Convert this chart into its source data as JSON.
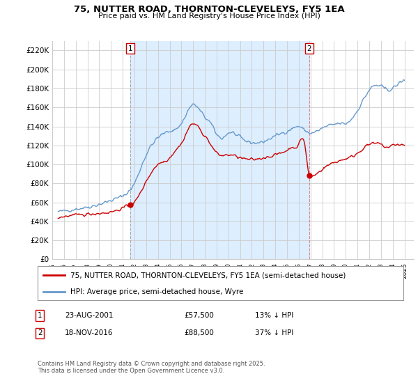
{
  "title": "75, NUTTER ROAD, THORNTON-CLEVELEYS, FY5 1EA",
  "subtitle": "Price paid vs. HM Land Registry's House Price Index (HPI)",
  "ylabel_ticks": [
    "£0",
    "£20K",
    "£40K",
    "£60K",
    "£80K",
    "£100K",
    "£120K",
    "£140K",
    "£160K",
    "£180K",
    "£200K",
    "£220K"
  ],
  "ytick_values": [
    0,
    20000,
    40000,
    60000,
    80000,
    100000,
    120000,
    140000,
    160000,
    180000,
    200000,
    220000
  ],
  "ylim": [
    0,
    230000
  ],
  "xlim_start": 1995.3,
  "xlim_end": 2025.8,
  "xticks": [
    1995,
    1996,
    1997,
    1998,
    1999,
    2000,
    2001,
    2002,
    2003,
    2004,
    2005,
    2006,
    2007,
    2008,
    2009,
    2010,
    2011,
    2012,
    2013,
    2014,
    2015,
    2016,
    2017,
    2018,
    2019,
    2020,
    2021,
    2022,
    2023,
    2024,
    2025
  ],
  "sale1_x": 2001.647,
  "sale1_y": 57500,
  "sale1_label": "1",
  "sale2_x": 2016.88,
  "sale2_y": 88500,
  "sale2_label": "2",
  "red_line_color": "#cc0000",
  "blue_line_color": "#6699cc",
  "vline1_color": "#aaaaaa",
  "vline2_color": "#dd6666",
  "fill_color": "#ddeeff",
  "legend_label_red": "75, NUTTER ROAD, THORNTON-CLEVELEYS, FY5 1EA (semi-detached house)",
  "legend_label_blue": "HPI: Average price, semi-detached house, Wyre",
  "table_row1": [
    "1",
    "23-AUG-2001",
    "£57,500",
    "13% ↓ HPI"
  ],
  "table_row2": [
    "2",
    "18-NOV-2016",
    "£88,500",
    "37% ↓ HPI"
  ],
  "footer": "Contains HM Land Registry data © Crown copyright and database right 2025.\nThis data is licensed under the Open Government Licence v3.0.",
  "bg_color": "#ffffff",
  "plot_bg_color": "#ffffff",
  "grid_color": "#cccccc"
}
